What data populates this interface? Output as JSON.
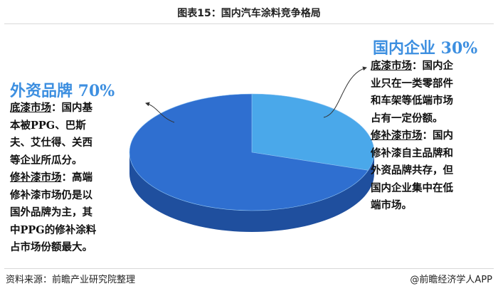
{
  "title": "图表15：国内汽车涂料竞争格局",
  "chart_data": {
    "type": "pie",
    "title": "图表15：国内汽车涂料竞争格局",
    "slices": [
      {
        "name": "国内企业",
        "value": 30,
        "label": "国内企业 30%",
        "color": "#4aa8ea"
      },
      {
        "name": "外资品牌",
        "value": 70,
        "label": "外资品牌 70%",
        "color": "#2f6fd0"
      }
    ],
    "style": "3d"
  },
  "left_panel": {
    "title": "外资品牌 70%",
    "s1_head": "底漆市场",
    "s1_lines": [
      "：国内基",
      "本被PPG、巴斯",
      "夫、艾仕得、关西",
      "等企业所瓜分。"
    ],
    "s2_head": "修补漆市场",
    "s2_lines": [
      "：高端",
      "修补漆市场仍是以",
      "国外品牌为主，其",
      "中PPG的修补涂料",
      "占市场份额最大。"
    ]
  },
  "right_panel": {
    "title": "国内企业 30%",
    "s1_head": "底漆市场",
    "s1_lines": [
      "：国内企",
      "业只在一类零部件",
      "和车架等低端市场",
      "占有一定份额。"
    ],
    "s2_head": "修补漆市场",
    "s2_lines": [
      "：国内",
      "修补漆自主品牌和",
      "外资品牌共存，但",
      "国内企业集中在低",
      "端市场。"
    ]
  },
  "footer": {
    "source": "资料来源：前瞻产业研究院整理",
    "brand": "@前瞻经济学人APP"
  }
}
